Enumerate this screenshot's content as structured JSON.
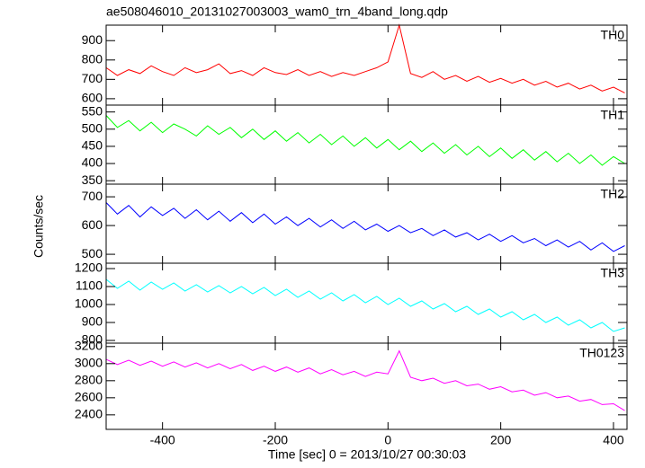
{
  "chart_data": [
    {
      "type": "line",
      "title": "ae508046010_20131027003003_wam0_trn_4band_long.qdp",
      "x": [
        -500,
        -480,
        -460,
        -440,
        -420,
        -400,
        -380,
        -360,
        -340,
        -320,
        -300,
        -280,
        -260,
        -240,
        -220,
        -200,
        -180,
        -160,
        -140,
        -120,
        -100,
        -80,
        -60,
        -40,
        -20,
        0,
        20,
        40,
        60,
        80,
        100,
        120,
        140,
        160,
        180,
        200,
        220,
        240,
        260,
        280,
        300,
        320,
        340,
        360,
        380,
        400,
        420
      ],
      "series": [
        {
          "name": "TH0",
          "color": "#ff0000",
          "values": [
            760,
            720,
            750,
            730,
            770,
            740,
            720,
            760,
            735,
            750,
            780,
            730,
            745,
            720,
            760,
            735,
            725,
            750,
            720,
            740,
            715,
            735,
            720,
            740,
            760,
            790,
            980,
            730,
            710,
            740,
            700,
            720,
            690,
            715,
            685,
            705,
            680,
            700,
            670,
            690,
            660,
            680,
            650,
            670,
            640,
            660,
            630
          ]
        }
      ],
      "xlim": [
        -500,
        424
      ],
      "ylim": [
        567,
        980
      ],
      "yticks": [
        600,
        700,
        800,
        900
      ]
    },
    {
      "type": "line",
      "x": [
        -500,
        -480,
        -460,
        -440,
        -420,
        -400,
        -380,
        -360,
        -340,
        -320,
        -300,
        -280,
        -260,
        -240,
        -220,
        -200,
        -180,
        -160,
        -140,
        -120,
        -100,
        -80,
        -60,
        -40,
        -20,
        0,
        20,
        40,
        60,
        80,
        100,
        120,
        140,
        160,
        180,
        200,
        220,
        240,
        260,
        280,
        300,
        320,
        340,
        360,
        380,
        400,
        420
      ],
      "series": [
        {
          "name": "TH1",
          "color": "#00ff00",
          "values": [
            540,
            505,
            525,
            495,
            520,
            490,
            515,
            500,
            480,
            510,
            485,
            505,
            475,
            500,
            470,
            495,
            465,
            490,
            460,
            485,
            455,
            480,
            450,
            475,
            445,
            470,
            440,
            465,
            435,
            460,
            430,
            455,
            425,
            450,
            420,
            445,
            415,
            440,
            410,
            435,
            405,
            430,
            400,
            425,
            395,
            420,
            400
          ]
        }
      ],
      "xlim": [
        -500,
        424
      ],
      "ylim": [
        340,
        570
      ],
      "yticks": [
        350,
        400,
        450,
        500,
        550
      ]
    },
    {
      "type": "line",
      "ylabel": "Counts/sec",
      "x": [
        -500,
        -480,
        -460,
        -440,
        -420,
        -400,
        -380,
        -360,
        -340,
        -320,
        -300,
        -280,
        -260,
        -240,
        -220,
        -200,
        -180,
        -160,
        -140,
        -120,
        -100,
        -80,
        -60,
        -40,
        -20,
        0,
        20,
        40,
        60,
        80,
        100,
        120,
        140,
        160,
        180,
        200,
        220,
        240,
        260,
        280,
        300,
        320,
        340,
        360,
        380,
        400,
        420
      ],
      "series": [
        {
          "name": "TH2",
          "color": "#0000ff",
          "values": [
            680,
            640,
            670,
            630,
            665,
            635,
            660,
            625,
            655,
            620,
            650,
            615,
            645,
            610,
            640,
            605,
            630,
            600,
            625,
            595,
            620,
            590,
            615,
            585,
            605,
            580,
            600,
            575,
            590,
            565,
            585,
            560,
            575,
            550,
            570,
            545,
            565,
            540,
            555,
            530,
            550,
            525,
            545,
            515,
            540,
            510,
            530
          ]
        }
      ],
      "xlim": [
        -500,
        424
      ],
      "ylim": [
        469,
        744
      ],
      "yticks": [
        500,
        600,
        700
      ]
    },
    {
      "type": "line",
      "x": [
        -500,
        -480,
        -460,
        -440,
        -420,
        -400,
        -380,
        -360,
        -340,
        -320,
        -300,
        -280,
        -260,
        -240,
        -220,
        -200,
        -180,
        -160,
        -140,
        -120,
        -100,
        -80,
        -60,
        -40,
        -20,
        0,
        20,
        40,
        60,
        80,
        100,
        120,
        140,
        160,
        180,
        200,
        220,
        240,
        260,
        280,
        300,
        320,
        340,
        360,
        380,
        400,
        420
      ],
      "series": [
        {
          "name": "TH3",
          "color": "#00ffff",
          "values": [
            1140,
            1090,
            1130,
            1080,
            1125,
            1085,
            1120,
            1075,
            1110,
            1070,
            1105,
            1065,
            1100,
            1060,
            1095,
            1050,
            1085,
            1040,
            1075,
            1030,
            1065,
            1020,
            1055,
            1010,
            1045,
            1000,
            1035,
            990,
            1020,
            975,
            1005,
            960,
            990,
            945,
            975,
            930,
            960,
            915,
            945,
            900,
            930,
            885,
            915,
            870,
            900,
            850,
            870
          ]
        }
      ],
      "xlim": [
        -500,
        424
      ],
      "ylim": [
        785,
        1230
      ],
      "yticks": [
        800,
        900,
        1000,
        1100,
        1200
      ]
    },
    {
      "type": "line",
      "xlabel": "Time [sec] 0 = 2013/10/27 00:30:03",
      "x": [
        -500,
        -480,
        -460,
        -440,
        -420,
        -400,
        -380,
        -360,
        -340,
        -320,
        -300,
        -280,
        -260,
        -240,
        -220,
        -200,
        -180,
        -160,
        -140,
        -120,
        -100,
        -80,
        -60,
        -40,
        -20,
        0,
        20,
        40,
        60,
        80,
        100,
        120,
        140,
        160,
        180,
        200,
        220,
        240,
        260,
        280,
        300,
        320,
        340,
        360,
        380,
        400,
        420
      ],
      "series": [
        {
          "name": "TH0123",
          "color": "#ff00ff",
          "values": [
            3050,
            2990,
            3040,
            2980,
            3030,
            2970,
            3020,
            2960,
            3010,
            2950,
            3000,
            2940,
            2990,
            2920,
            2970,
            2910,
            2960,
            2900,
            2950,
            2880,
            2930,
            2870,
            2910,
            2850,
            2900,
            2880,
            3150,
            2840,
            2800,
            2830,
            2770,
            2800,
            2740,
            2760,
            2700,
            2730,
            2670,
            2690,
            2630,
            2660,
            2600,
            2620,
            2560,
            2580,
            2520,
            2530,
            2450
          ]
        }
      ],
      "xlim": [
        -500,
        424
      ],
      "ylim": [
        2230,
        3240
      ],
      "yticks": [
        2400,
        2600,
        2800,
        3000,
        3200
      ],
      "xticks": [
        -400,
        -200,
        0,
        200,
        400
      ]
    }
  ]
}
